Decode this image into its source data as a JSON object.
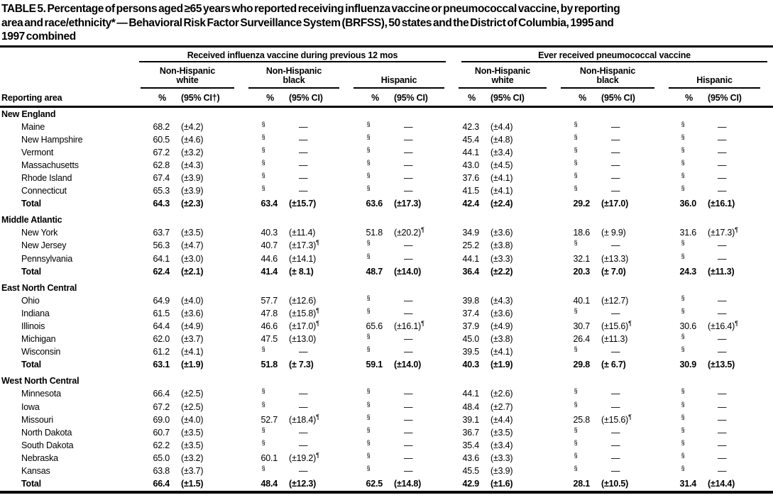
{
  "title_lines": [
    "TABLE 5. Percentage of persons aged ≥65 years who reported receiving influenza vaccine or pneumococcal vaccine, by reporting",
    "area and race/ethnicity* — Behavioral Risk Factor Surveillance System (BRFSS), 50 states and the District of Columbia, 1995 and",
    "1997 combined"
  ],
  "header": {
    "row_label": "Reporting area",
    "spanner_flu": "Received influenza vaccine during previous 12 mos",
    "spanner_pneumo": "Ever received pneumococcal vaccine",
    "groups": [
      {
        "line1": "Non-Hispanic",
        "line2": "white"
      },
      {
        "line1": "Non-Hispanic",
        "line2": "black"
      },
      {
        "line1": "",
        "line2": "Hispanic"
      },
      {
        "line1": "Non-Hispanic",
        "line2": "white"
      },
      {
        "line1": "Non-Hispanic",
        "line2": "black"
      },
      {
        "line1": "",
        "line2": "Hispanic"
      }
    ],
    "pct_label": "%",
    "ci_labels": [
      "(95% CI†)",
      "(95% CI)",
      "(95% CI)",
      "(95% CI)",
      "(95% CI)",
      "(95% CI)"
    ]
  },
  "symbols": {
    "suppressed": "§",
    "no_data": "—",
    "wide_ci": "¶"
  },
  "sections": [
    {
      "name": "New England",
      "rows": [
        {
          "area": "Maine",
          "total": false,
          "cells": [
            {
              "p": "68.2",
              "c": "(±4.2)"
            },
            {
              "p": "§",
              "c": "—"
            },
            {
              "p": "§",
              "c": "—"
            },
            {
              "p": "42.3",
              "c": "(±4.4)"
            },
            {
              "p": "§",
              "c": "—"
            },
            {
              "p": "§",
              "c": "—"
            }
          ]
        },
        {
          "area": "New Hampshire",
          "total": false,
          "cells": [
            {
              "p": "60.5",
              "c": "(±4.6)"
            },
            {
              "p": "§",
              "c": "—"
            },
            {
              "p": "§",
              "c": "—"
            },
            {
              "p": "45.4",
              "c": "(±4.8)"
            },
            {
              "p": "§",
              "c": "—"
            },
            {
              "p": "§",
              "c": "—"
            }
          ]
        },
        {
          "area": "Vermont",
          "total": false,
          "cells": [
            {
              "p": "67.2",
              "c": "(±3.2)"
            },
            {
              "p": "§",
              "c": "—"
            },
            {
              "p": "§",
              "c": "—"
            },
            {
              "p": "44.1",
              "c": "(±3.4)"
            },
            {
              "p": "§",
              "c": "—"
            },
            {
              "p": "§",
              "c": "—"
            }
          ]
        },
        {
          "area": "Massachusetts",
          "total": false,
          "cells": [
            {
              "p": "62.8",
              "c": "(±4.3)"
            },
            {
              "p": "§",
              "c": "—"
            },
            {
              "p": "§",
              "c": "—"
            },
            {
              "p": "43.0",
              "c": "(±4.5)"
            },
            {
              "p": "§",
              "c": "—"
            },
            {
              "p": "§",
              "c": "—"
            }
          ]
        },
        {
          "area": "Rhode Island",
          "total": false,
          "cells": [
            {
              "p": "67.4",
              "c": "(±3.9)"
            },
            {
              "p": "§",
              "c": "—"
            },
            {
              "p": "§",
              "c": "—"
            },
            {
              "p": "37.6",
              "c": "(±4.1)"
            },
            {
              "p": "§",
              "c": "—"
            },
            {
              "p": "§",
              "c": "—"
            }
          ]
        },
        {
          "area": "Connecticut",
          "total": false,
          "cells": [
            {
              "p": "65.3",
              "c": "(±3.9)"
            },
            {
              "p": "§",
              "c": "—"
            },
            {
              "p": "§",
              "c": "—"
            },
            {
              "p": "41.5",
              "c": "(±4.1)"
            },
            {
              "p": "§",
              "c": "—"
            },
            {
              "p": "§",
              "c": "—"
            }
          ]
        },
        {
          "area": "Total",
          "total": true,
          "cells": [
            {
              "p": "64.3",
              "c": "(±2.3)"
            },
            {
              "p": "63.4",
              "c": "(±15.7)"
            },
            {
              "p": "63.6",
              "c": "(±17.3)"
            },
            {
              "p": "42.4",
              "c": "(±2.4)"
            },
            {
              "p": "29.2",
              "c": "(±17.0)"
            },
            {
              "p": "36.0",
              "c": "(±16.1)"
            }
          ]
        }
      ]
    },
    {
      "name": "Middle Atlantic",
      "rows": [
        {
          "area": "New York",
          "total": false,
          "cells": [
            {
              "p": "63.7",
              "c": "(±3.5)"
            },
            {
              "p": "40.3",
              "c": "(±11.4)"
            },
            {
              "p": "51.8",
              "c": "(±20.2)",
              "s": "¶"
            },
            {
              "p": "34.9",
              "c": "(±3.6)"
            },
            {
              "p": "18.6",
              "c": "(± 9.9)"
            },
            {
              "p": "31.6",
              "c": "(±17.3)",
              "s": "¶"
            }
          ]
        },
        {
          "area": "New Jersey",
          "total": false,
          "cells": [
            {
              "p": "56.3",
              "c": "(±4.7)"
            },
            {
              "p": "40.7",
              "c": "(±17.3)",
              "s": "¶"
            },
            {
              "p": "§",
              "c": "—"
            },
            {
              "p": "25.2",
              "c": "(±3.8)"
            },
            {
              "p": "§",
              "c": "—"
            },
            {
              "p": "§",
              "c": "—"
            }
          ]
        },
        {
          "area": "Pennsylvania",
          "total": false,
          "cells": [
            {
              "p": "64.1",
              "c": "(±3.0)"
            },
            {
              "p": "44.6",
              "c": "(±14.1)"
            },
            {
              "p": "§",
              "c": "—"
            },
            {
              "p": "44.1",
              "c": "(±3.3)"
            },
            {
              "p": "32.1",
              "c": "(±13.3)"
            },
            {
              "p": "§",
              "c": "—"
            }
          ]
        },
        {
          "area": "Total",
          "total": true,
          "cells": [
            {
              "p": "62.4",
              "c": "(±2.1)"
            },
            {
              "p": "41.4",
              "c": "(± 8.1)"
            },
            {
              "p": "48.7",
              "c": "(±14.0)"
            },
            {
              "p": "36.4",
              "c": "(±2.2)"
            },
            {
              "p": "20.3",
              "c": "(± 7.0)"
            },
            {
              "p": "24.3",
              "c": "(±11.3)"
            }
          ]
        }
      ]
    },
    {
      "name": "East North Central",
      "rows": [
        {
          "area": "Ohio",
          "total": false,
          "cells": [
            {
              "p": "64.9",
              "c": "(±4.0)"
            },
            {
              "p": "57.7",
              "c": "(±12.6)"
            },
            {
              "p": "§",
              "c": "—"
            },
            {
              "p": "39.8",
              "c": "(±4.3)"
            },
            {
              "p": "40.1",
              "c": "(±12.7)"
            },
            {
              "p": "§",
              "c": "—"
            }
          ]
        },
        {
          "area": "Indiana",
          "total": false,
          "cells": [
            {
              "p": "61.5",
              "c": "(±3.6)"
            },
            {
              "p": "47.8",
              "c": "(±15.8)",
              "s": "¶"
            },
            {
              "p": "§",
              "c": "—"
            },
            {
              "p": "37.4",
              "c": "(±3.6)"
            },
            {
              "p": "§",
              "c": "—"
            },
            {
              "p": "§",
              "c": "—"
            }
          ]
        },
        {
          "area": "Illinois",
          "total": false,
          "cells": [
            {
              "p": "64.4",
              "c": "(±4.9)"
            },
            {
              "p": "46.6",
              "c": "(±17.0)",
              "s": "¶"
            },
            {
              "p": "65.6",
              "c": "(±16.1)",
              "s": "¶"
            },
            {
              "p": "37.9",
              "c": "(±4.9)"
            },
            {
              "p": "30.7",
              "c": "(±15.6)",
              "s": "¶"
            },
            {
              "p": "30.6",
              "c": "(±16.4)",
              "s": "¶"
            }
          ]
        },
        {
          "area": "Michigan",
          "total": false,
          "cells": [
            {
              "p": "62.0",
              "c": "(±3.7)"
            },
            {
              "p": "47.5",
              "c": "(±13.0)"
            },
            {
              "p": "§",
              "c": "—"
            },
            {
              "p": "45.0",
              "c": "(±3.8)"
            },
            {
              "p": "26.4",
              "c": "(±11.3)"
            },
            {
              "p": "§",
              "c": "—"
            }
          ]
        },
        {
          "area": "Wisconsin",
          "total": false,
          "cells": [
            {
              "p": "61.2",
              "c": "(±4.1)"
            },
            {
              "p": "§",
              "c": "—"
            },
            {
              "p": "§",
              "c": "—"
            },
            {
              "p": "39.5",
              "c": "(±4.1)"
            },
            {
              "p": "§",
              "c": "—"
            },
            {
              "p": "§",
              "c": "—"
            }
          ]
        },
        {
          "area": "Total",
          "total": true,
          "cells": [
            {
              "p": "63.1",
              "c": "(±1.9)"
            },
            {
              "p": "51.8",
              "c": "(± 7.3)"
            },
            {
              "p": "59.1",
              "c": "(±14.0)"
            },
            {
              "p": "40.3",
              "c": "(±1.9)"
            },
            {
              "p": "29.8",
              "c": "(± 6.7)"
            },
            {
              "p": "30.9",
              "c": "(±13.5)"
            }
          ]
        }
      ]
    },
    {
      "name": "West North Central",
      "rows": [
        {
          "area": "Minnesota",
          "total": false,
          "cells": [
            {
              "p": "66.4",
              "c": "(±2.5)"
            },
            {
              "p": "§",
              "c": "—"
            },
            {
              "p": "§",
              "c": "—"
            },
            {
              "p": "44.1",
              "c": "(±2.6)"
            },
            {
              "p": "§",
              "c": "—"
            },
            {
              "p": "§",
              "c": "—"
            }
          ]
        },
        {
          "area": "Iowa",
          "total": false,
          "cells": [
            {
              "p": "67.2",
              "c": "(±2.5)"
            },
            {
              "p": "§",
              "c": "—"
            },
            {
              "p": "§",
              "c": "—"
            },
            {
              "p": "48.4",
              "c": "(±2.7)"
            },
            {
              "p": "§",
              "c": "—"
            },
            {
              "p": "§",
              "c": "—"
            }
          ]
        },
        {
          "area": "Missouri",
          "total": false,
          "cells": [
            {
              "p": "69.0",
              "c": "(±4.0)"
            },
            {
              "p": "52.7",
              "c": "(±18.4)",
              "s": "¶"
            },
            {
              "p": "§",
              "c": "—"
            },
            {
              "p": "39.1",
              "c": "(±4.4)"
            },
            {
              "p": "25.8",
              "c": "(±15.6)",
              "s": "¶"
            },
            {
              "p": "§",
              "c": "—"
            }
          ]
        },
        {
          "area": "North Dakota",
          "total": false,
          "cells": [
            {
              "p": "60.7",
              "c": "(±3.5)"
            },
            {
              "p": "§",
              "c": "—"
            },
            {
              "p": "§",
              "c": "—"
            },
            {
              "p": "36.7",
              "c": "(±3.5)"
            },
            {
              "p": "§",
              "c": "—"
            },
            {
              "p": "§",
              "c": "—"
            }
          ]
        },
        {
          "area": "South Dakota",
          "total": false,
          "cells": [
            {
              "p": "62.2",
              "c": "(±3.5)"
            },
            {
              "p": "§",
              "c": "—"
            },
            {
              "p": "§",
              "c": "—"
            },
            {
              "p": "35.4",
              "c": "(±3.4)"
            },
            {
              "p": "§",
              "c": "—"
            },
            {
              "p": "§",
              "c": "—"
            }
          ]
        },
        {
          "area": "Nebraska",
          "total": false,
          "cells": [
            {
              "p": "65.0",
              "c": "(±3.2)"
            },
            {
              "p": "60.1",
              "c": "(±19.2)",
              "s": "¶"
            },
            {
              "p": "§",
              "c": "—"
            },
            {
              "p": "43.6",
              "c": "(±3.3)"
            },
            {
              "p": "§",
              "c": "—"
            },
            {
              "p": "§",
              "c": "—"
            }
          ]
        },
        {
          "area": "Kansas",
          "total": false,
          "cells": [
            {
              "p": "63.8",
              "c": "(±3.7)"
            },
            {
              "p": "§",
              "c": "—"
            },
            {
              "p": "§",
              "c": "—"
            },
            {
              "p": "45.5",
              "c": "(±3.9)"
            },
            {
              "p": "§",
              "c": "—"
            },
            {
              "p": "§",
              "c": "—"
            }
          ]
        },
        {
          "area": "Total",
          "total": true,
          "cells": [
            {
              "p": "66.4",
              "c": "(±1.5)"
            },
            {
              "p": "48.4",
              "c": "(±12.3)"
            },
            {
              "p": "62.5",
              "c": "(±14.8)"
            },
            {
              "p": "42.9",
              "c": "(±1.6)"
            },
            {
              "p": "28.1",
              "c": "(±10.5)"
            },
            {
              "p": "31.4",
              "c": "(±14.4)"
            }
          ]
        }
      ]
    }
  ]
}
